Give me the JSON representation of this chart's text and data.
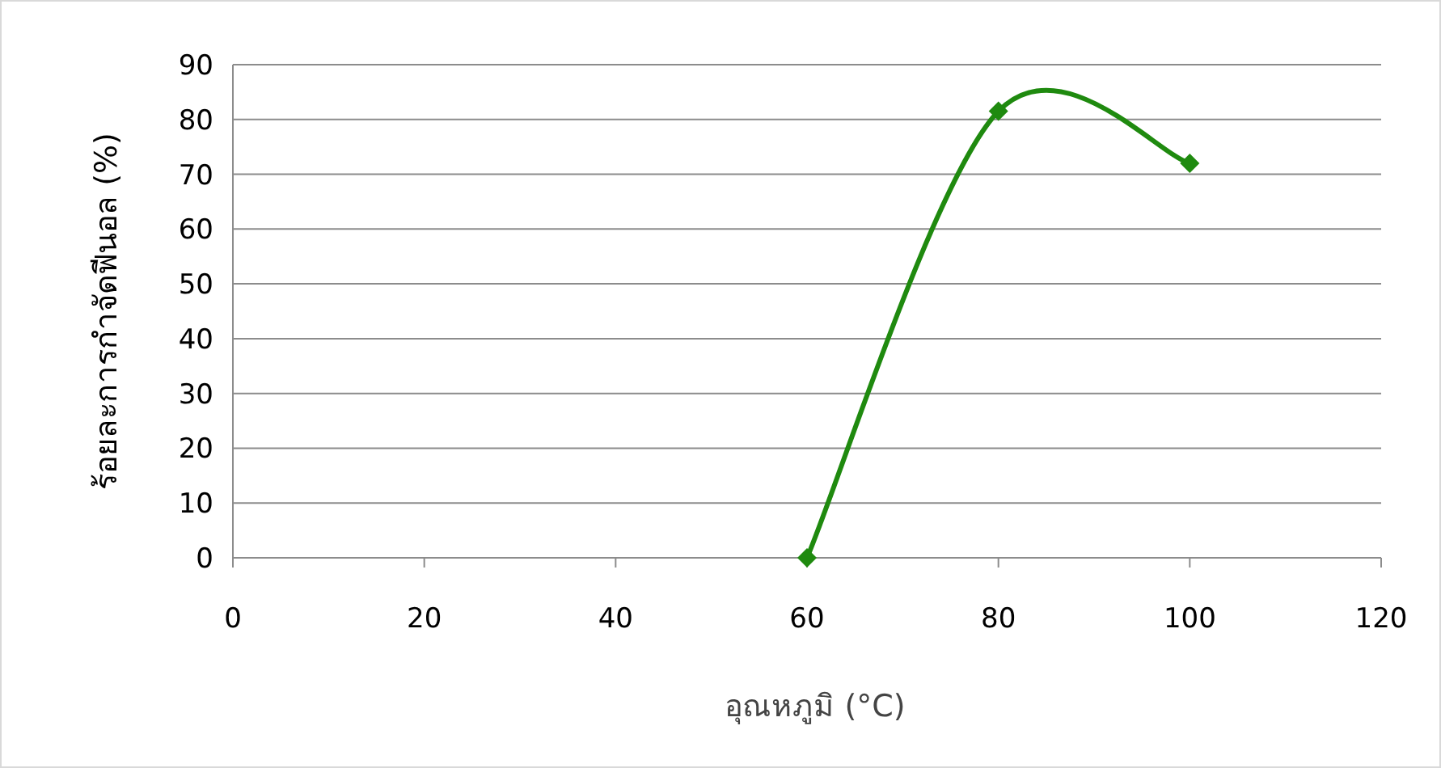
{
  "chart_data": {
    "type": "line",
    "xlabel": "อุณหภูมิ (°C)",
    "ylabel": "ร้อยละการกำจัดฟีนอล (%)",
    "x": [
      60,
      80,
      100
    ],
    "series": [
      {
        "color": "#1f8a0f",
        "values": [
          0,
          81.5,
          72
        ]
      }
    ],
    "xlim": [
      0,
      120
    ],
    "xticks": [
      0,
      20,
      40,
      60,
      80,
      100,
      120
    ],
    "ylim": [
      0,
      90
    ],
    "yticks": [
      0,
      10,
      20,
      30,
      40,
      50,
      60,
      70,
      80,
      90
    ],
    "grid": "y",
    "marker": "diamond",
    "line_style": "solid"
  }
}
